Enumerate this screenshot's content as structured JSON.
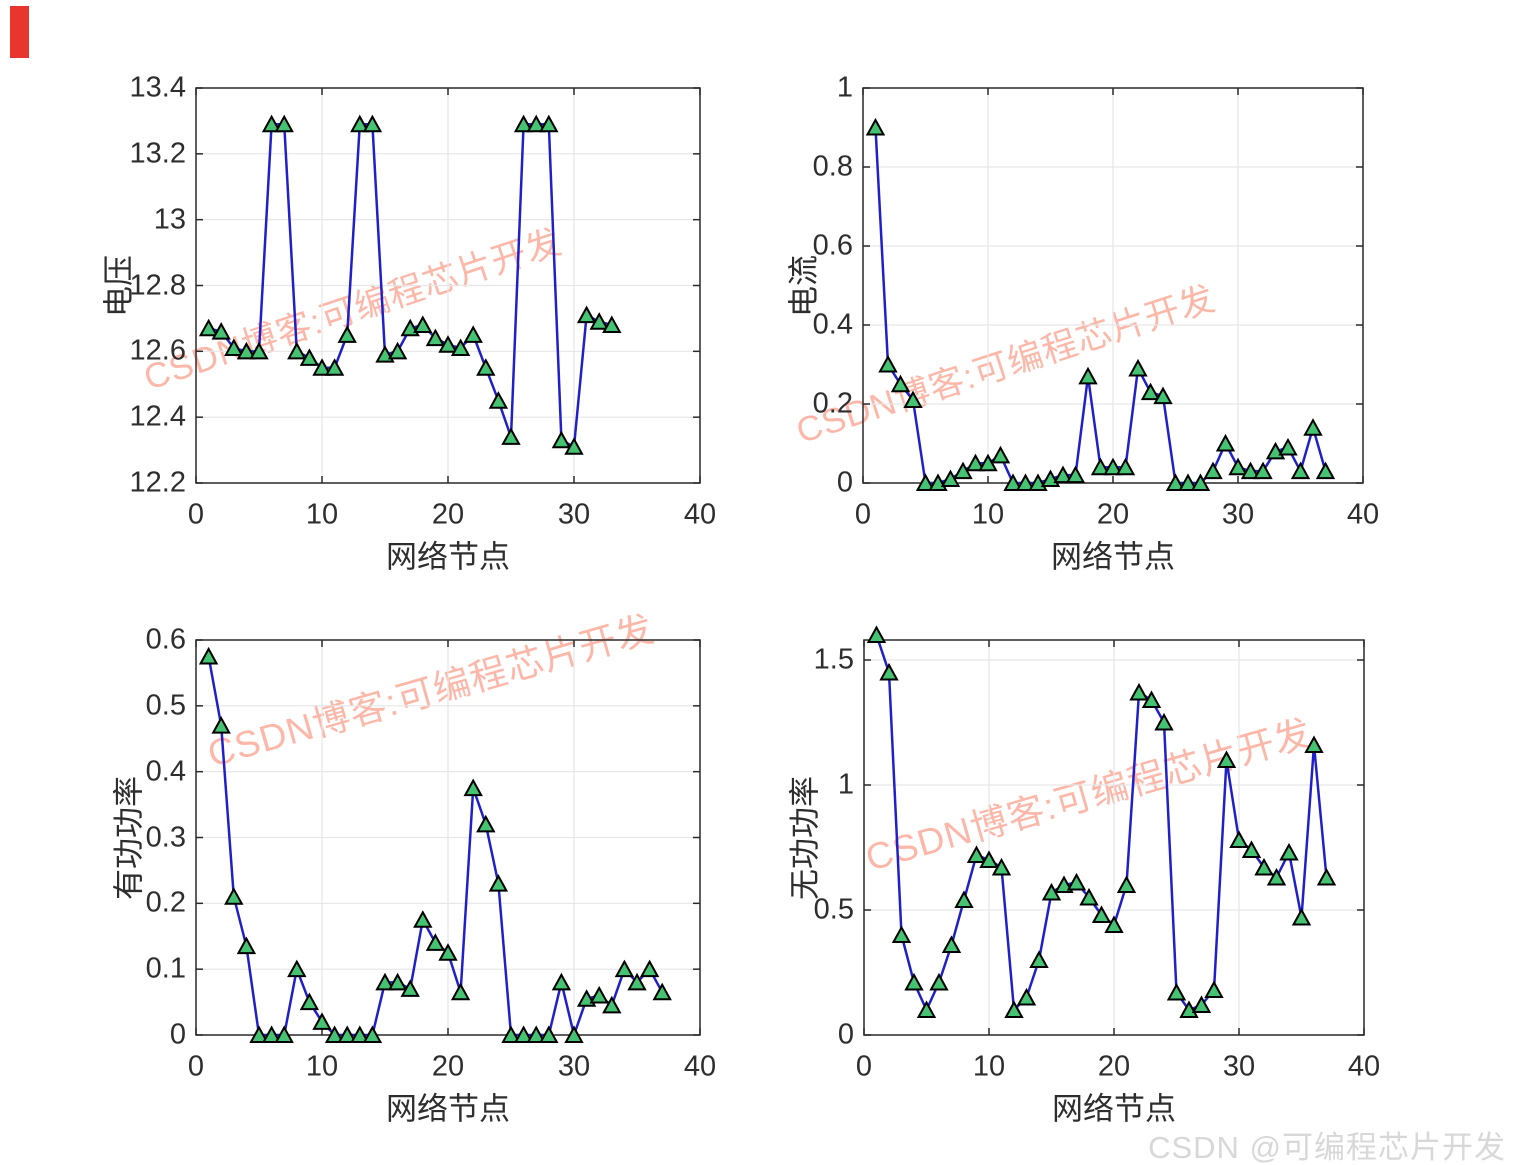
{
  "page": {
    "background": "#ffffff"
  },
  "style": {
    "line_color": "#2020c8",
    "marker_fill": "#45c372",
    "marker_edge": "#000000",
    "grid_color": "#e6e6e6",
    "axis_color": "#2b2b2b",
    "watermark_color": "#fc5531",
    "credit_color": "#d8d8d8",
    "red_bar_color": "#e8352e"
  },
  "decor": {
    "red_bar": {
      "color": "#e8352e"
    },
    "credit": {
      "text": "CSDN @可编程芯片开发",
      "color": "#d8d8d8"
    }
  },
  "chart_data": [
    {
      "id": "voltage",
      "type": "line",
      "title": "",
      "ylabel": "电压",
      "xlabel": "网络节点",
      "watermark": "CSDN博客:可编程芯片开发",
      "xlim": [
        0,
        40
      ],
      "xticks": [
        0,
        10,
        20,
        30,
        40
      ],
      "ylim": [
        12.2,
        13.4
      ],
      "yticks": [
        12.2,
        12.4,
        12.6,
        12.8,
        13,
        13.2,
        13.4
      ],
      "grid": true,
      "marker": "triangle-up",
      "x_start": 1,
      "values": [
        12.67,
        12.66,
        12.61,
        12.6,
        12.6,
        13.29,
        13.29,
        12.6,
        12.58,
        12.55,
        12.55,
        12.65,
        13.29,
        13.29,
        12.59,
        12.6,
        12.67,
        12.68,
        12.64,
        12.62,
        12.61,
        12.65,
        12.55,
        12.45,
        12.34,
        13.29,
        13.29,
        13.29,
        12.33,
        12.31,
        12.71,
        12.69,
        12.68
      ]
    },
    {
      "id": "current",
      "type": "line",
      "title": "",
      "ylabel": "电流",
      "xlabel": "网络节点",
      "watermark": "CSDN博客:可编程芯片开发",
      "xlim": [
        0,
        40
      ],
      "xticks": [
        0,
        10,
        20,
        30,
        40
      ],
      "ylim": [
        0,
        1
      ],
      "yticks": [
        0,
        0.2,
        0.4,
        0.6,
        0.8,
        1
      ],
      "grid": true,
      "marker": "triangle-up",
      "x_start": 1,
      "values": [
        0.9,
        0.3,
        0.25,
        0.21,
        0.0,
        0.0,
        0.01,
        0.03,
        0.05,
        0.05,
        0.07,
        0.0,
        0.0,
        0.0,
        0.01,
        0.02,
        0.02,
        0.27,
        0.04,
        0.04,
        0.04,
        0.29,
        0.23,
        0.22,
        0.0,
        0.0,
        0.0,
        0.03,
        0.1,
        0.04,
        0.03,
        0.03,
        0.08,
        0.09,
        0.03,
        0.14,
        0.03
      ]
    },
    {
      "id": "active-power",
      "type": "line",
      "title": "",
      "ylabel": "有功功率",
      "xlabel": "网络节点",
      "watermark": "CSDN博客:可编程芯片开发",
      "xlim": [
        0,
        40
      ],
      "xticks": [
        0,
        10,
        20,
        30,
        40
      ],
      "ylim": [
        0,
        0.6
      ],
      "yticks": [
        0,
        0.1,
        0.2,
        0.3,
        0.4,
        0.5,
        0.6
      ],
      "grid": true,
      "marker": "triangle-up",
      "x_start": 1,
      "values": [
        0.575,
        0.47,
        0.21,
        0.135,
        0,
        0,
        0,
        0.1,
        0.05,
        0.02,
        0,
        0,
        0,
        0,
        0.08,
        0.08,
        0.07,
        0.175,
        0.14,
        0.125,
        0.065,
        0.375,
        0.32,
        0.23,
        0,
        0,
        0,
        0,
        0.08,
        0,
        0.055,
        0.06,
        0.045,
        0.1,
        0.08,
        0.1,
        0.065
      ]
    },
    {
      "id": "reactive-power",
      "type": "line",
      "title": "",
      "ylabel": "无功功率",
      "xlabel": "网络节点",
      "watermark": "CSDN博客:可编程芯片开发",
      "xlim": [
        0,
        40
      ],
      "xticks": [
        0,
        10,
        20,
        30,
        40
      ],
      "ylim": [
        0,
        1.58
      ],
      "yticks": [
        0,
        0.5,
        1,
        1.5
      ],
      "grid": true,
      "marker": "triangle-up",
      "x_start": 1,
      "values": [
        1.6,
        1.45,
        0.4,
        0.21,
        0.1,
        0.21,
        0.36,
        0.54,
        0.72,
        0.7,
        0.67,
        0.1,
        0.15,
        0.3,
        0.57,
        0.6,
        0.61,
        0.55,
        0.48,
        0.44,
        0.6,
        1.37,
        1.34,
        1.25,
        0.17,
        0.1,
        0.12,
        0.18,
        1.1,
        0.78,
        0.74,
        0.67,
        0.63,
        0.73,
        0.47,
        1.16,
        0.63
      ]
    }
  ]
}
